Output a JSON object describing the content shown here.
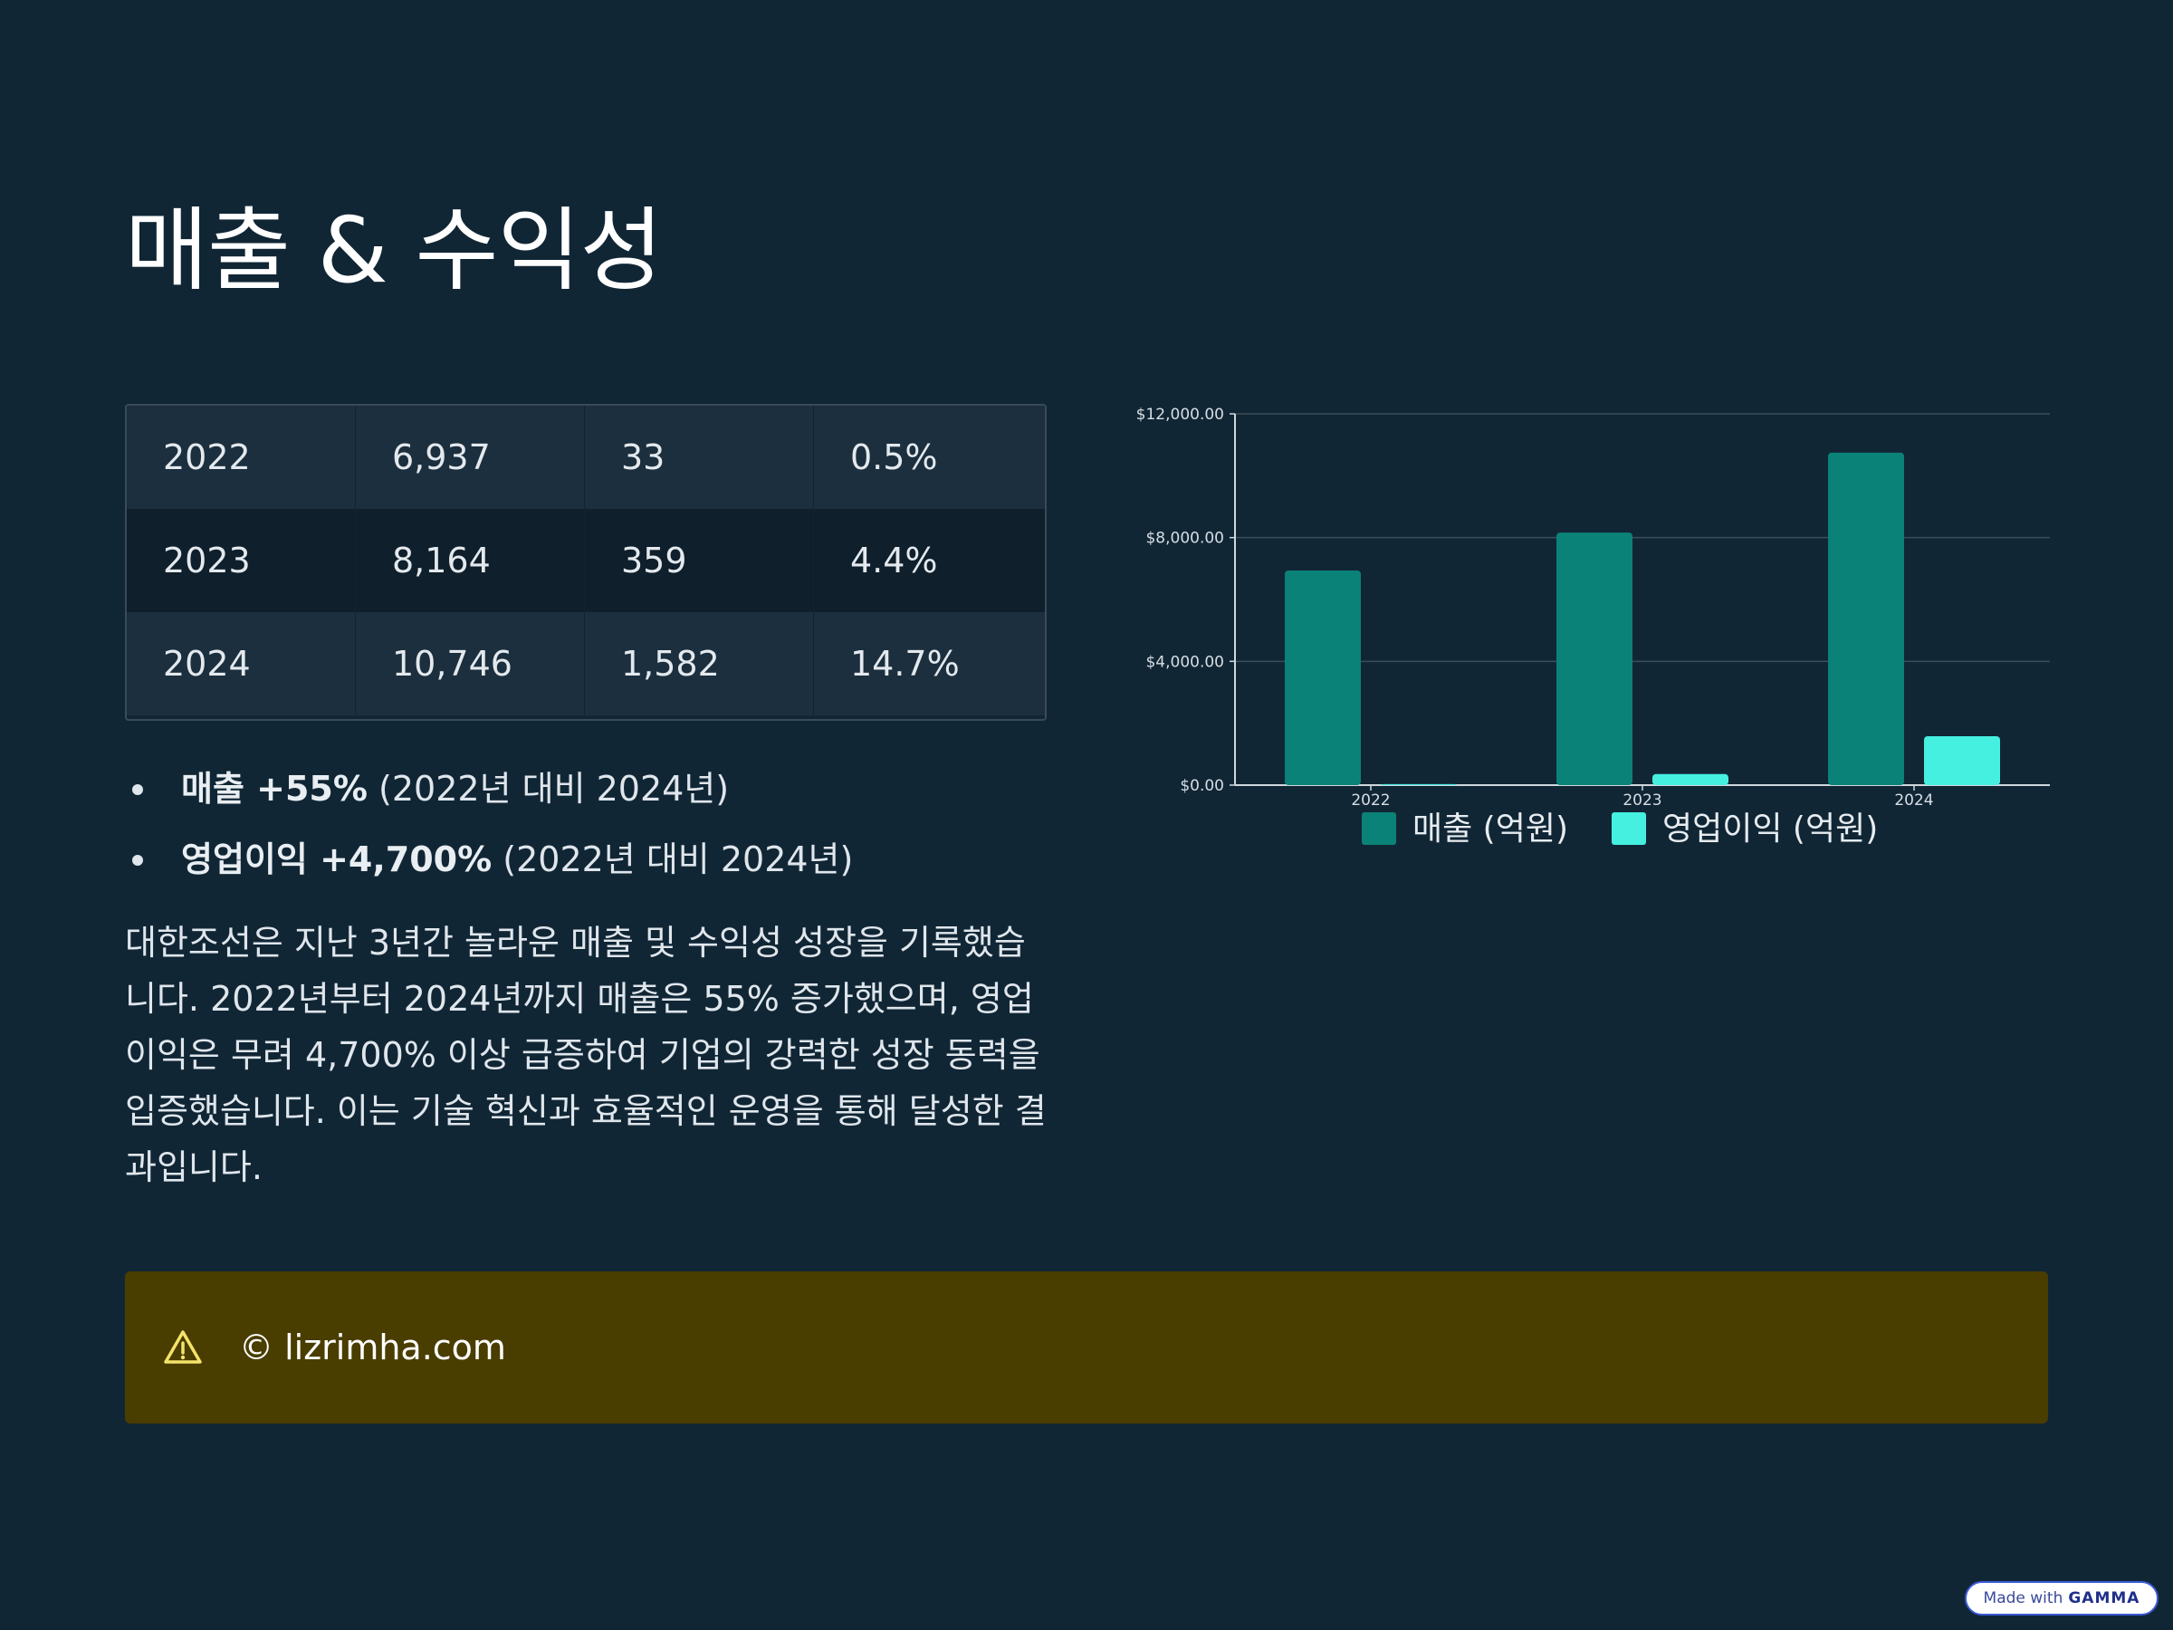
{
  "slide": {
    "title": "매출 & 수익성"
  },
  "table": {
    "rows": [
      [
        "2022",
        "6,937",
        "33",
        "0.5%"
      ],
      [
        "2023",
        "8,164",
        "359",
        "4.4%"
      ],
      [
        "2024",
        "10,746",
        "1,582",
        "14.7%"
      ]
    ]
  },
  "bullets": [
    {
      "bold": "매출 +55%",
      "rest": " (2022년 대비 2024년)"
    },
    {
      "bold": "영업이익 +4,700%",
      "rest": " (2022년 대비 2024년)"
    }
  ],
  "paragraph": "대한조선은 지난 3년간 놀라운 매출 및 수익성 성장을 기록했습니다. 2022년부터 2024년까지 매출은 55% 증가했으며, 영업이익은 무려 4,700% 이상 급증하여 기업의 강력한 성장 동력을 입증했습니다. 이는 기술 혁신과 효율적인 운영을 통해 달성한 결과입니다.",
  "notice": {
    "icon": "warning-icon",
    "text": "© lizrimha.com"
  },
  "badge": {
    "prefix": "Made with",
    "brand": "GAMMA"
  },
  "chart_data": {
    "type": "bar",
    "categories": [
      "2022",
      "2023",
      "2024"
    ],
    "series": [
      {
        "name": "매출 (억원)",
        "values": [
          6937,
          8164,
          10746
        ],
        "color": "#0b8277"
      },
      {
        "name": "영업이익 (억원)",
        "values": [
          33,
          359,
          1582
        ],
        "color": "#45f0e0"
      }
    ],
    "yticks": [
      "$0.00",
      "$4,000.00",
      "$8,000.00",
      "$12,000.00"
    ],
    "ylim": [
      0,
      12000
    ],
    "grid": true,
    "legend": "bottom",
    "title": "",
    "xlabel": "",
    "ylabel": ""
  }
}
